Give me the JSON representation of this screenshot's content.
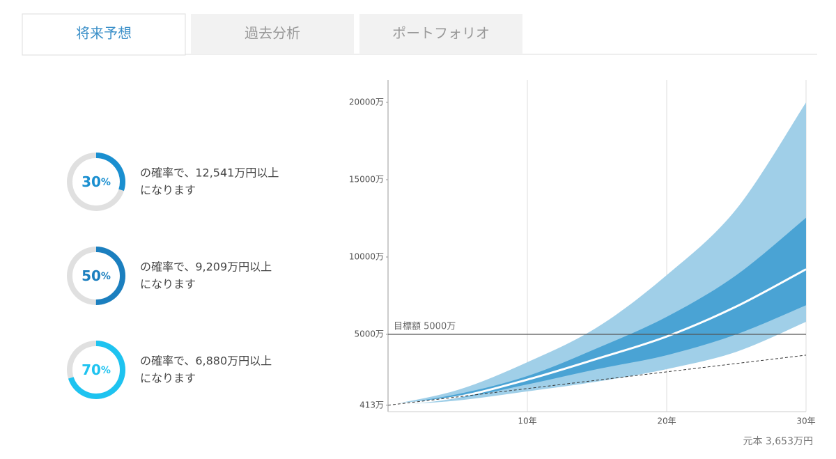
{
  "tabs": [
    "将来予想",
    "過去分析",
    "ポートフォリオ"
  ],
  "probabilities": [
    {
      "percent": 30,
      "unit": "%",
      "color": "#1a8fd0",
      "lines": [
        "の確率で、12,541万円以上",
        "になります"
      ]
    },
    {
      "percent": 50,
      "unit": "%",
      "color": "#1b7fbf",
      "lines": [
        "の確率で、9,209万円以上",
        "になります"
      ]
    },
    {
      "percent": 70,
      "unit": "%",
      "color": "#1ec3f0",
      "lines": [
        "の確率で、6,880万円以上",
        "になります"
      ]
    }
  ],
  "chart_data": {
    "type": "fan",
    "x": [
      0,
      5,
      10,
      15,
      20,
      25,
      30
    ],
    "bands": [
      {
        "color": "#a0cfe8",
        "lower": [
          413,
          720,
          1310,
          1940,
          2750,
          3870,
          5810
        ],
        "upper": [
          413,
          1400,
          3200,
          5450,
          8830,
          13100,
          20000
        ]
      },
      {
        "color": "#4aa3d4",
        "lower": [
          413,
          860,
          1760,
          2750,
          3650,
          5000,
          6880
        ],
        "upper": [
          413,
          1130,
          2300,
          4100,
          6130,
          8830,
          12541
        ]
      }
    ],
    "median": {
      "color": "#ffffff",
      "values": [
        413,
        950,
        2070,
        3420,
        4860,
        6800,
        9209
      ]
    },
    "principal": {
      "color": "#333333",
      "dashed": true,
      "x": [
        0,
        30
      ],
      "values": [
        413,
        3653
      ]
    },
    "target": {
      "value": 5000,
      "label": "目標額 5000万",
      "color": "#555555"
    },
    "xlim": [
      0,
      30
    ],
    "ylim": [
      0,
      21440
    ],
    "xticks": [
      {
        "value": 10,
        "label": "10年"
      },
      {
        "value": 20,
        "label": "20年"
      },
      {
        "value": 30,
        "label": "30年"
      }
    ],
    "yticks": [
      {
        "value": 413,
        "label": "413万"
      },
      {
        "value": 5000,
        "label": "5000万"
      },
      {
        "value": 10000,
        "label": "10000万"
      },
      {
        "value": 15000,
        "label": "15000万"
      },
      {
        "value": 20000,
        "label": "20000万"
      }
    ],
    "grid": "x",
    "note": "元本 3,653万円"
  }
}
